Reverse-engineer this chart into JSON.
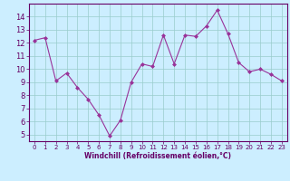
{
  "x": [
    0,
    1,
    2,
    3,
    4,
    5,
    6,
    7,
    8,
    9,
    10,
    11,
    12,
    13,
    14,
    15,
    16,
    17,
    18,
    19,
    20,
    21,
    22,
    23
  ],
  "y": [
    12.2,
    12.4,
    9.1,
    9.7,
    8.6,
    7.7,
    6.5,
    4.9,
    6.1,
    9.0,
    10.4,
    10.2,
    12.6,
    10.4,
    12.6,
    12.5,
    13.3,
    14.5,
    12.7,
    10.5,
    9.8,
    10.0,
    9.6,
    9.1
  ],
  "line_color": "#993399",
  "marker_color": "#993399",
  "bg_color": "#cceeff",
  "grid_color": "#99cccc",
  "xlabel": "Windchill (Refroidissement éolien,°C)",
  "xlabel_color": "#660066",
  "tick_color": "#660066",
  "axis_color": "#660066",
  "ylim": [
    4.5,
    15.0
  ],
  "xlim": [
    -0.5,
    23.5
  ],
  "yticks": [
    5,
    6,
    7,
    8,
    9,
    10,
    11,
    12,
    13,
    14
  ],
  "xticks": [
    0,
    1,
    2,
    3,
    4,
    5,
    6,
    7,
    8,
    9,
    10,
    11,
    12,
    13,
    14,
    15,
    16,
    17,
    18,
    19,
    20,
    21,
    22,
    23
  ]
}
